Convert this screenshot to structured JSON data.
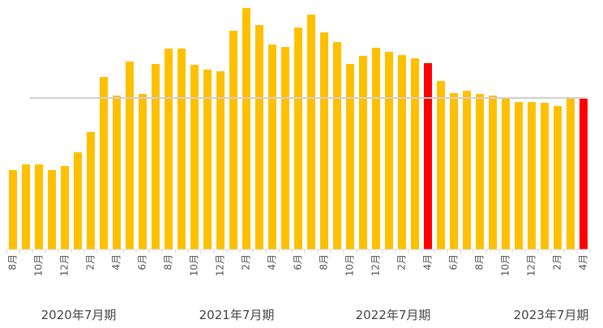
{
  "chart_data": {
    "type": "bar",
    "categories": [
      "8月",
      null,
      "10月",
      null,
      "12月",
      null,
      "2月",
      null,
      "4月",
      null,
      "6月",
      null,
      "8月",
      null,
      "10月",
      null,
      "12月",
      null,
      "2月",
      null,
      "4月",
      null,
      "6月",
      null,
      "8月",
      null,
      "10月",
      null,
      "12月",
      null,
      "2月",
      null,
      "4月",
      null,
      "6月",
      null,
      "8月",
      null,
      "10月",
      null,
      "12月",
      null,
      "2月",
      null,
      "4月"
    ],
    "values": [
      98,
      105,
      105,
      98,
      103,
      120,
      145,
      213,
      190,
      232,
      192,
      229,
      248,
      248,
      228,
      222,
      220,
      270,
      298,
      277,
      253,
      250,
      274,
      290,
      268,
      256,
      229,
      239,
      249,
      244,
      240,
      236,
      230,
      208,
      193,
      196,
      192,
      190,
      186,
      182,
      182,
      181,
      177,
      186,
      186
    ],
    "colors": [
      "#ffc000",
      "#ffc000",
      "#ffc000",
      "#ffc000",
      "#ffc000",
      "#ffc000",
      "#ffc000",
      "#ffc000",
      "#ffc000",
      "#ffc000",
      "#ffc000",
      "#ffc000",
      "#ffc000",
      "#ffc000",
      "#ffc000",
      "#ffc000",
      "#ffc000",
      "#ffc000",
      "#ffc000",
      "#ffc000",
      "#ffc000",
      "#ffc000",
      "#ffc000",
      "#ffc000",
      "#ffc000",
      "#ffc000",
      "#ffc000",
      "#ffc000",
      "#ffc000",
      "#ffc000",
      "#ffc000",
      "#ffc000",
      "#ff0000",
      "#ffc000",
      "#ffc000",
      "#ffc000",
      "#ffc000",
      "#ffc000",
      "#ffc000",
      "#ffc000",
      "#ffc000",
      "#ffc000",
      "#ffc000",
      "#ffc000",
      "#ff0000"
    ],
    "ylim": [
      0,
      300
    ],
    "reference_line": 187,
    "groups": [
      "2020年7月期",
      "2021年7月期",
      "2022年7月期",
      "2023年7月期"
    ]
  }
}
